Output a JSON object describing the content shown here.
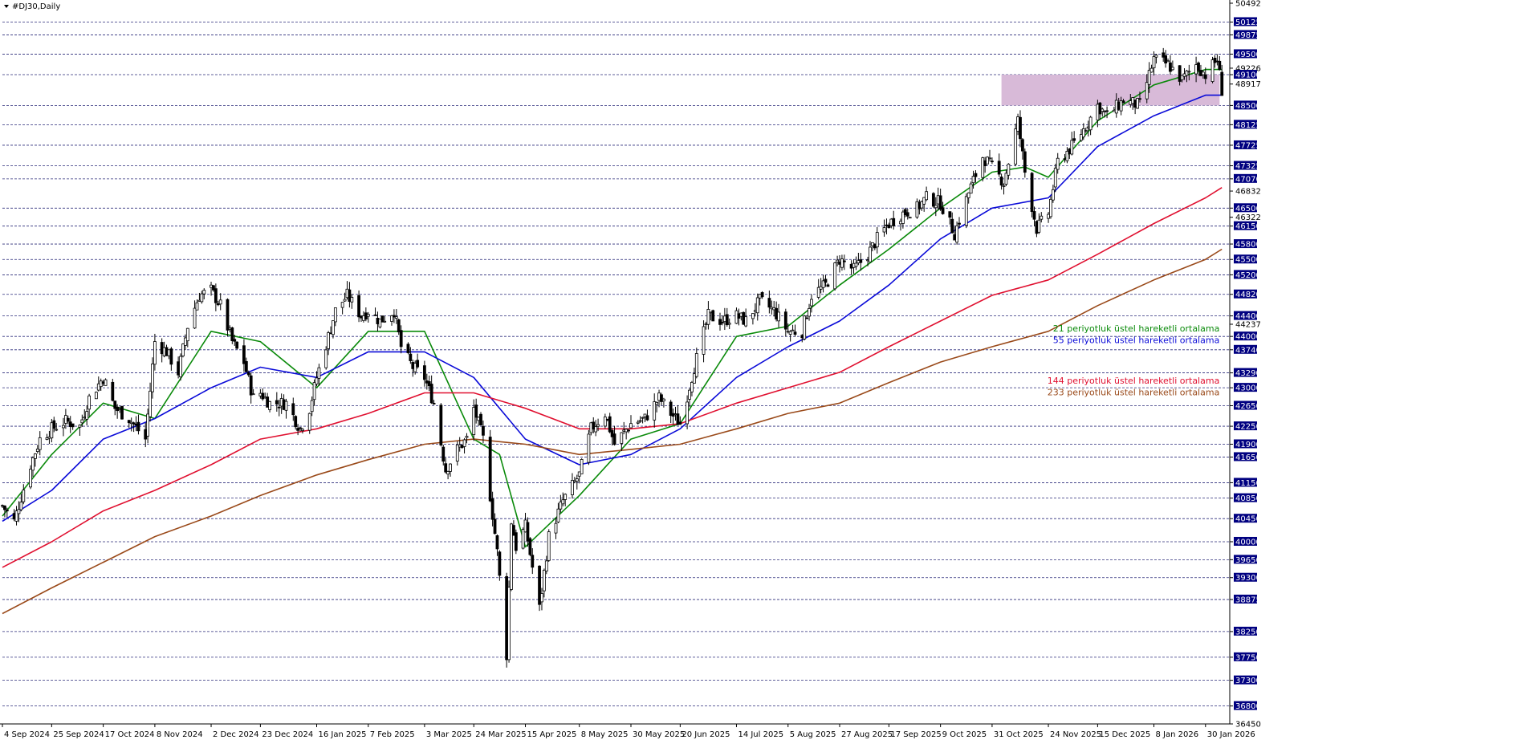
{
  "window": {
    "symbol_title": "#DJ30,Daily"
  },
  "colors": {
    "background": "#ffffff",
    "candle": "#000000",
    "grid": "#2b2b7a",
    "ema21": "#0a8a0a",
    "ema55": "#0a0ad8",
    "ema144": "#e01030",
    "ema233": "#9a4a1a",
    "zone": "#d6b6d6",
    "highlight_bg": "#000080"
  },
  "chart_data": {
    "type": "line",
    "title": "#DJ30,Daily",
    "ylim": [
      36450,
      50492
    ],
    "x_tick_labels": [
      "4 Sep 2024",
      "25 Sep 2024",
      "17 Oct 2024",
      "8 Nov 2024",
      "2 Dec 2024",
      "23 Dec 2024",
      "16 Jan 2025",
      "7 Feb 2025",
      "3 Mar 2025",
      "24 Mar 2025",
      "15 Apr 2025",
      "8 May 2025",
      "30 May 2025",
      "20 Jun 2025",
      "14 Jul 2025",
      "5 Aug 2025",
      "27 Aug 2025",
      "17 Sep 2025",
      "9 Oct 2025",
      "31 Oct 2025",
      "24 Nov 2025",
      "15 Dec 2025",
      "8 Jan 2026",
      "30 Jan 2026"
    ],
    "y_tick_labels": [
      50492,
      50125,
      49875,
      49500,
      49226,
      49100,
      48917,
      48500,
      48125,
      47725,
      47325,
      47070,
      46832,
      46500,
      46322,
      46150,
      45800,
      45500,
      45200,
      44820,
      44400,
      44237,
      44000,
      43740,
      43290,
      43000,
      42650,
      42250,
      41900,
      41650,
      41150,
      40850,
      40450,
      40000,
      39650,
      39300,
      38875,
      38250,
      37750,
      37300,
      36800,
      36450
    ],
    "y_tick_highlighted": [
      50125,
      49875,
      49500,
      49100,
      48500,
      48125,
      47725,
      47325,
      47070,
      46500,
      46150,
      45800,
      45500,
      45200,
      44820,
      44400,
      44000,
      43740,
      43290,
      43000,
      42650,
      42250,
      41900,
      41650,
      41150,
      40850,
      40450,
      40000,
      39650,
      39300,
      38875,
      38250,
      37750,
      37300,
      36800
    ],
    "horizontal_levels": [
      50125,
      49875,
      49500,
      49100,
      48500,
      48125,
      47725,
      47325,
      47070,
      46500,
      46150,
      45800,
      45500,
      45200,
      44820,
      44400,
      44000,
      43740,
      43290,
      43000,
      42650,
      42250,
      41900,
      41650,
      41150,
      40850,
      40450,
      40000,
      39650,
      39300,
      38875,
      38250,
      37750,
      37300,
      36800
    ],
    "zone": {
      "y_low": 48500,
      "y_high": 49100,
      "x_from": "4 Nov 2025",
      "x_to": "5 Feb 2026"
    },
    "close_series": [
      [
        "4 Sep 2024",
        40700
      ],
      [
        "9 Sep 2024",
        40400
      ],
      [
        "16 Sep 2024",
        41500
      ],
      [
        "20 Sep 2024",
        42000
      ],
      [
        "25 Sep 2024",
        42200
      ],
      [
        "1 Oct 2024",
        42350
      ],
      [
        "7 Oct 2024",
        42250
      ],
      [
        "11 Oct 2024",
        42800
      ],
      [
        "17 Oct 2024",
        43200
      ],
      [
        "22 Oct 2024",
        42600
      ],
      [
        "28 Oct 2024",
        42400
      ],
      [
        "4 Nov 2024",
        42000
      ],
      [
        "8 Nov 2024",
        43900
      ],
      [
        "13 Nov 2024",
        43700
      ],
      [
        "18 Nov 2024",
        43300
      ],
      [
        "22 Nov 2024",
        44200
      ],
      [
        "27 Nov 2024",
        44800
      ],
      [
        "2 Dec 2024",
        44900
      ],
      [
        "6 Dec 2024",
        44600
      ],
      [
        "11 Dec 2024",
        43900
      ],
      [
        "16 Dec 2024",
        43500
      ],
      [
        "20 Dec 2024",
        42800
      ],
      [
        "23 Dec 2024",
        42900
      ],
      [
        "27 Dec 2024",
        42700
      ],
      [
        "3 Jan 2025",
        42700
      ],
      [
        "9 Jan 2025",
        42200
      ],
      [
        "13 Jan 2025",
        42600
      ],
      [
        "16 Jan 2025",
        43200
      ],
      [
        "21 Jan 2025",
        44000
      ],
      [
        "24 Jan 2025",
        44500
      ],
      [
        "29 Jan 2025",
        44800
      ],
      [
        "4 Feb 2025",
        44400
      ],
      [
        "7 Feb 2025",
        44500
      ],
      [
        "12 Feb 2025",
        44300
      ],
      [
        "18 Feb 2025",
        44500
      ],
      [
        "21 Feb 2025",
        43800
      ],
      [
        "26 Feb 2025",
        43400
      ],
      [
        "3 Mar 2025",
        43200
      ],
      [
        "7 Mar 2025",
        42700
      ],
      [
        "12 Mar 2025",
        41400
      ],
      [
        "17 Mar 2025",
        41800
      ],
      [
        "21 Mar 2025",
        42000
      ],
      [
        "24 Mar 2025",
        42600
      ],
      [
        "28 Mar 2025",
        42000
      ],
      [
        "3 Apr 2025",
        39800
      ],
      [
        "7 Apr 2025",
        37800
      ],
      [
        "9 Apr 2025",
        40400
      ],
      [
        "11 Apr 2025",
        39900
      ],
      [
        "15 Apr 2025",
        40300
      ],
      [
        "21 Apr 2025",
        38700
      ],
      [
        "25 Apr 2025",
        40100
      ],
      [
        "1 May 2025",
        40800
      ],
      [
        "8 May 2025",
        41300
      ],
      [
        "13 May 2025",
        42200
      ],
      [
        "19 May 2025",
        42500
      ],
      [
        "23 May 2025",
        41900
      ],
      [
        "30 May 2025",
        42300
      ],
      [
        "5 Jun 2025",
        42400
      ],
      [
        "11 Jun 2025",
        42800
      ],
      [
        "16 Jun 2025",
        42500
      ],
      [
        "20 Jun 2025",
        42300
      ],
      [
        "26 Jun 2025",
        43400
      ],
      [
        "2 Jul 2025",
        44400
      ],
      [
        "8 Jul 2025",
        44300
      ],
      [
        "14 Jul 2025",
        44400
      ],
      [
        "18 Jul 2025",
        44300
      ],
      [
        "24 Jul 2025",
        44700
      ],
      [
        "30 Jul 2025",
        44500
      ],
      [
        "5 Aug 2025",
        44100
      ],
      [
        "11 Aug 2025",
        44100
      ],
      [
        "15 Aug 2025",
        44800
      ],
      [
        "21 Aug 2025",
        45000
      ],
      [
        "27 Aug 2025",
        45500
      ],
      [
        "2 Sep 2025",
        45300
      ],
      [
        "8 Sep 2025",
        45600
      ],
      [
        "12 Sep 2025",
        45900
      ],
      [
        "17 Sep 2025",
        46200
      ],
      [
        "23 Sep 2025",
        46400
      ],
      [
        "29 Sep 2025",
        46500
      ],
      [
        "3 Oct 2025",
        46700
      ],
      [
        "9 Oct 2025",
        46600
      ],
      [
        "15 Oct 2025",
        46000
      ],
      [
        "21 Oct 2025",
        46800
      ],
      [
        "27 Oct 2025",
        47500
      ],
      [
        "31 Oct 2025",
        47300
      ],
      [
        "5 Nov 2025",
        47000
      ],
      [
        "11 Nov 2025",
        48200
      ],
      [
        "14 Nov 2025",
        47200
      ],
      [
        "19 Nov 2025",
        46100
      ],
      [
        "24 Nov 2025",
        46400
      ],
      [
        "28 Nov 2025",
        47400
      ],
      [
        "4 Dec 2025",
        47700
      ],
      [
        "10 Dec 2025",
        48100
      ],
      [
        "15 Dec 2025",
        48500
      ],
      [
        "19 Dec 2025",
        48300
      ],
      [
        "26 Dec 2025",
        48600
      ],
      [
        "2 Jan 2026",
        48500
      ],
      [
        "8 Jan 2026",
        49400
      ],
      [
        "14 Jan 2026",
        49300
      ],
      [
        "20 Jan 2026",
        49000
      ],
      [
        "26 Jan 2026",
        49300
      ],
      [
        "30 Jan 2026",
        49100
      ],
      [
        "4 Feb 2026",
        49400
      ],
      [
        "6 Feb 2026",
        48800
      ]
    ],
    "series": [
      {
        "name": "21 periyotluk üstel hareketli ortalama",
        "color": "#0a8a0a",
        "points": [
          [
            "4 Sep 2024",
            40500
          ],
          [
            "25 Sep 2024",
            41700
          ],
          [
            "17 Oct 2024",
            42700
          ],
          [
            "8 Nov 2024",
            42400
          ],
          [
            "2 Dec 2024",
            44100
          ],
          [
            "23 Dec 2024",
            43900
          ],
          [
            "16 Jan 2025",
            43000
          ],
          [
            "7 Feb 2025",
            44100
          ],
          [
            "3 Mar 2025",
            44100
          ],
          [
            "24 Mar 2025",
            42000
          ],
          [
            "4 Apr 2025",
            41700
          ],
          [
            "15 Apr 2025",
            39900
          ],
          [
            "8 May 2025",
            40900
          ],
          [
            "30 May 2025",
            42000
          ],
          [
            "20 Jun 2025",
            42300
          ],
          [
            "14 Jul 2025",
            44000
          ],
          [
            "5 Aug 2025",
            44200
          ],
          [
            "27 Aug 2025",
            45000
          ],
          [
            "17 Sep 2025",
            45700
          ],
          [
            "9 Oct 2025",
            46500
          ],
          [
            "31 Oct 2025",
            47200
          ],
          [
            "14 Nov 2025",
            47300
          ],
          [
            "24 Nov 2025",
            47100
          ],
          [
            "15 Dec 2025",
            48200
          ],
          [
            "8 Jan 2026",
            48900
          ],
          [
            "30 Jan 2026",
            49200
          ],
          [
            "6 Feb 2026",
            49200
          ]
        ]
      },
      {
        "name": "55 periyotluk üstel hareketli ortalama",
        "color": "#0a0ad8",
        "points": [
          [
            "4 Sep 2024",
            40400
          ],
          [
            "25 Sep 2024",
            41000
          ],
          [
            "17 Oct 2024",
            42000
          ],
          [
            "8 Nov 2024",
            42400
          ],
          [
            "2 Dec 2024",
            43000
          ],
          [
            "23 Dec 2024",
            43400
          ],
          [
            "16 Jan 2025",
            43200
          ],
          [
            "7 Feb 2025",
            43700
          ],
          [
            "3 Mar 2025",
            43700
          ],
          [
            "24 Mar 2025",
            43200
          ],
          [
            "15 Apr 2025",
            42000
          ],
          [
            "8 May 2025",
            41500
          ],
          [
            "30 May 2025",
            41700
          ],
          [
            "20 Jun 2025",
            42200
          ],
          [
            "14 Jul 2025",
            43200
          ],
          [
            "5 Aug 2025",
            43800
          ],
          [
            "27 Aug 2025",
            44300
          ],
          [
            "17 Sep 2025",
            45000
          ],
          [
            "9 Oct 2025",
            45900
          ],
          [
            "31 Oct 2025",
            46500
          ],
          [
            "24 Nov 2025",
            46700
          ],
          [
            "15 Dec 2025",
            47700
          ],
          [
            "8 Jan 2026",
            48300
          ],
          [
            "30 Jan 2026",
            48700
          ],
          [
            "6 Feb 2026",
            48700
          ]
        ]
      },
      {
        "name": "144 periyotluk üstel hareketli ortalama",
        "color": "#e01030",
        "points": [
          [
            "4 Sep 2024",
            39500
          ],
          [
            "25 Sep 2024",
            40000
          ],
          [
            "17 Oct 2024",
            40600
          ],
          [
            "8 Nov 2024",
            41000
          ],
          [
            "2 Dec 2024",
            41500
          ],
          [
            "23 Dec 2024",
            42000
          ],
          [
            "16 Jan 2025",
            42200
          ],
          [
            "7 Feb 2025",
            42500
          ],
          [
            "3 Mar 2025",
            42900
          ],
          [
            "24 Mar 2025",
            42900
          ],
          [
            "15 Apr 2025",
            42600
          ],
          [
            "8 May 2025",
            42200
          ],
          [
            "30 May 2025",
            42200
          ],
          [
            "20 Jun 2025",
            42300
          ],
          [
            "14 Jul 2025",
            42700
          ],
          [
            "5 Aug 2025",
            43000
          ],
          [
            "27 Aug 2025",
            43300
          ],
          [
            "17 Sep 2025",
            43800
          ],
          [
            "9 Oct 2025",
            44300
          ],
          [
            "31 Oct 2025",
            44800
          ],
          [
            "24 Nov 2025",
            45100
          ],
          [
            "15 Dec 2025",
            45600
          ],
          [
            "8 Jan 2026",
            46200
          ],
          [
            "30 Jan 2026",
            46700
          ],
          [
            "6 Feb 2026",
            46900
          ]
        ]
      },
      {
        "name": "233 periyotluk üstel hareketli ortalama",
        "color": "#9a4a1a",
        "points": [
          [
            "4 Sep 2024",
            38600
          ],
          [
            "25 Sep 2024",
            39100
          ],
          [
            "17 Oct 2024",
            39600
          ],
          [
            "8 Nov 2024",
            40100
          ],
          [
            "2 Dec 2024",
            40500
          ],
          [
            "23 Dec 2024",
            40900
          ],
          [
            "16 Jan 2025",
            41300
          ],
          [
            "7 Feb 2025",
            41600
          ],
          [
            "3 Mar 2025",
            41900
          ],
          [
            "24 Mar 2025",
            42000
          ],
          [
            "15 Apr 2025",
            41900
          ],
          [
            "8 May 2025",
            41700
          ],
          [
            "30 May 2025",
            41800
          ],
          [
            "20 Jun 2025",
            41900
          ],
          [
            "14 Jul 2025",
            42200
          ],
          [
            "5 Aug 2025",
            42500
          ],
          [
            "27 Aug 2025",
            42700
          ],
          [
            "17 Sep 2025",
            43100
          ],
          [
            "9 Oct 2025",
            43500
          ],
          [
            "31 Oct 2025",
            43800
          ],
          [
            "24 Nov 2025",
            44100
          ],
          [
            "15 Dec 2025",
            44600
          ],
          [
            "8 Jan 2026",
            45100
          ],
          [
            "30 Jan 2026",
            45500
          ],
          [
            "6 Feb 2026",
            45700
          ]
        ]
      }
    ],
    "annotations": [
      {
        "text": "21 periyotluk üstel hareketli ortalama",
        "color": "#0a8a0a",
        "anchor_date": "5 Feb 2026",
        "anchor_value": 44100
      },
      {
        "text": "55 periyotluk üstel hareketli ortalama",
        "color": "#0a0ad8",
        "anchor_date": "5 Feb 2026",
        "anchor_value": 43870
      },
      {
        "text": "144 periyotluk üstel hareketli ortalama",
        "color": "#e01030",
        "anchor_date": "5 Feb 2026",
        "anchor_value": 43080
      },
      {
        "text": "233 periyotluk üstel hareketli ortalama",
        "color": "#9a4a1a",
        "anchor_date": "5 Feb 2026",
        "anchor_value": 42850
      }
    ],
    "grid": true,
    "legend": "none"
  }
}
